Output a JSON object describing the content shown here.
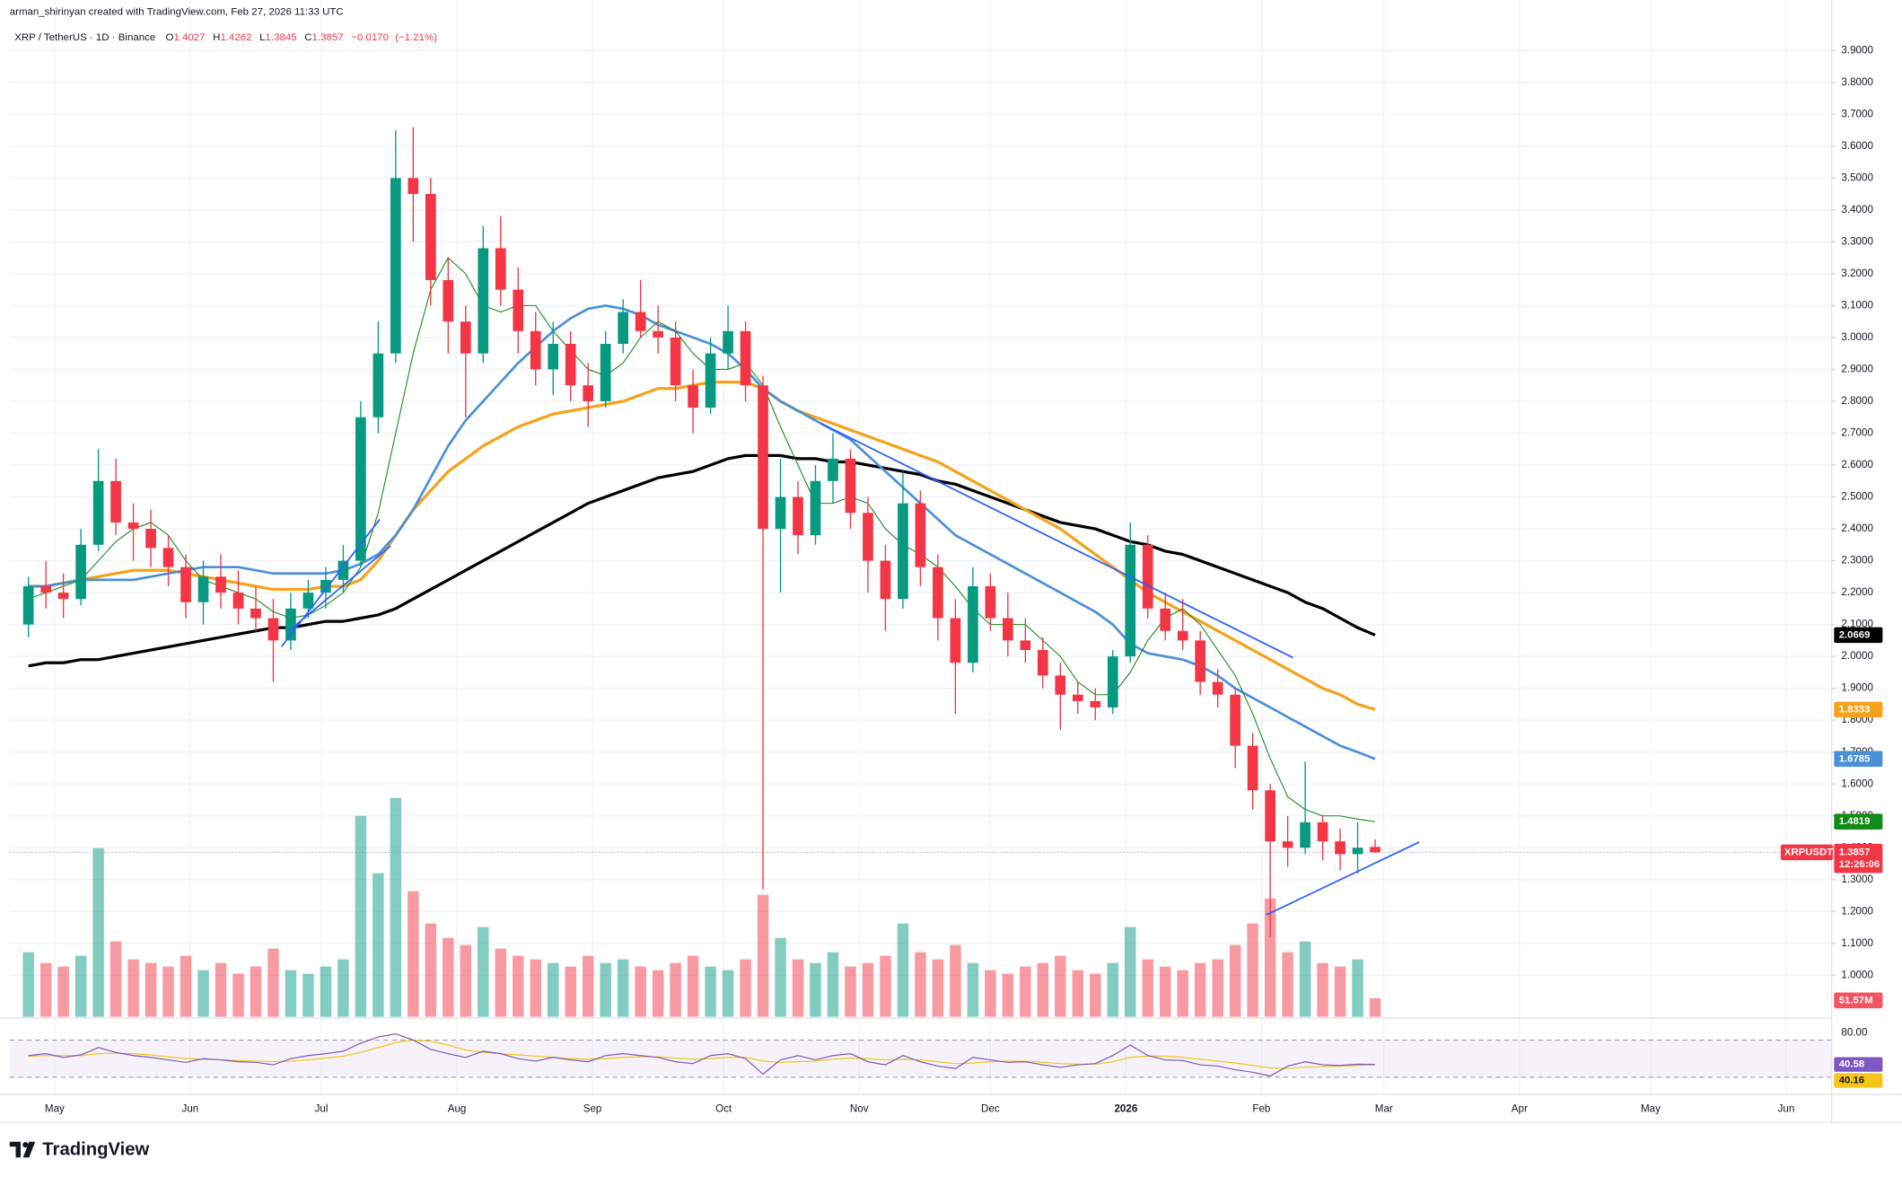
{
  "chart_data": {
    "type": "candlestick",
    "subtitle": "arman_shirinyan created with TradingView.com, Feb 27, 2026 11:33 UTC",
    "title": "XRP / TetherUS · 1D · Binance",
    "header": {
      "prefixes": [
        "O",
        "H",
        "L",
        "C"
      ],
      "change": {
        "value": -0.017,
        "label": "−0.0170"
      },
      "change_pct": {
        "value": -1.21,
        "label": "(−1.21%)"
      }
    },
    "categories": [
      null,
      null,
      null,
      null,
      null,
      null,
      null,
      null,
      null,
      null,
      null,
      null,
      null,
      null,
      null,
      null,
      null,
      null,
      null,
      null,
      null,
      null,
      null,
      null,
      null,
      null,
      null,
      null,
      null,
      null,
      null,
      null,
      null,
      null,
      null,
      null,
      null,
      null,
      null,
      null,
      null,
      null,
      null,
      null,
      null,
      null,
      null,
      null,
      null,
      null,
      null,
      null,
      null,
      null,
      null,
      null,
      null,
      null,
      null,
      null,
      null,
      null,
      null,
      null,
      null,
      null,
      null,
      null,
      null,
      null,
      null,
      null,
      null,
      null,
      null,
      null,
      null,
      null
    ],
    "open": [
      2.1,
      2.22,
      2.2,
      2.18,
      2.35,
      2.55,
      2.42,
      2.4,
      2.34,
      2.28,
      2.17,
      2.25,
      2.2,
      2.15,
      2.12,
      2.05,
      2.15,
      2.2,
      2.24,
      2.3,
      2.75,
      2.95,
      3.5,
      3.45,
      3.18,
      3.05,
      2.95,
      3.28,
      3.15,
      3.02,
      2.9,
      2.98,
      2.85,
      2.8,
      2.98,
      3.08,
      3.02,
      3.0,
      2.85,
      2.78,
      2.95,
      3.02,
      2.85,
      2.4,
      2.5,
      2.38,
      2.55,
      2.62,
      2.45,
      2.3,
      2.18,
      2.48,
      2.28,
      2.12,
      1.98,
      2.22,
      2.12,
      2.05,
      2.02,
      1.94,
      1.88,
      1.86,
      1.84,
      2.0,
      2.35,
      2.15,
      2.08,
      2.05,
      1.92,
      1.88,
      1.72,
      1.58,
      1.42,
      1.4,
      1.48,
      1.42,
      1.38,
      1.4027
    ],
    "high": [
      2.25,
      2.3,
      2.26,
      2.4,
      2.65,
      2.62,
      2.48,
      2.46,
      2.38,
      2.32,
      2.3,
      2.32,
      2.27,
      2.22,
      2.18,
      2.2,
      2.24,
      2.28,
      2.35,
      2.8,
      3.05,
      3.65,
      3.66,
      3.5,
      3.25,
      3.1,
      3.35,
      3.38,
      3.22,
      3.08,
      3.05,
      3.02,
      2.92,
      3.02,
      3.12,
      3.18,
      3.1,
      3.05,
      2.9,
      3.0,
      3.1,
      3.05,
      2.88,
      2.62,
      2.55,
      2.6,
      2.7,
      2.65,
      2.5,
      2.35,
      2.58,
      2.52,
      2.32,
      2.18,
      2.28,
      2.26,
      2.2,
      2.12,
      2.06,
      1.98,
      1.92,
      1.9,
      2.02,
      2.42,
      2.38,
      2.2,
      2.18,
      2.08,
      1.96,
      1.9,
      1.76,
      1.6,
      1.5,
      1.67,
      1.5,
      1.46,
      1.48,
      1.4262
    ],
    "low": [
      2.06,
      2.15,
      2.12,
      2.16,
      2.33,
      2.38,
      2.3,
      2.28,
      2.22,
      2.12,
      2.1,
      2.15,
      2.1,
      2.08,
      1.92,
      2.02,
      2.12,
      2.15,
      2.2,
      2.28,
      2.7,
      2.92,
      3.3,
      3.1,
      2.95,
      2.75,
      2.92,
      3.1,
      2.95,
      2.85,
      2.82,
      2.8,
      2.72,
      2.78,
      2.95,
      3.0,
      2.95,
      2.8,
      2.7,
      2.76,
      2.9,
      2.8,
      1.27,
      2.2,
      2.32,
      2.35,
      2.48,
      2.4,
      2.2,
      2.08,
      2.15,
      2.22,
      2.05,
      1.82,
      1.95,
      2.08,
      2.0,
      1.98,
      1.9,
      1.77,
      1.82,
      1.8,
      1.82,
      1.98,
      2.12,
      2.05,
      2.02,
      1.88,
      1.84,
      1.65,
      1.52,
      1.12,
      1.34,
      1.38,
      1.36,
      1.33,
      1.32,
      1.3845
    ],
    "close": [
      2.22,
      2.2,
      2.18,
      2.35,
      2.55,
      2.42,
      2.4,
      2.34,
      2.28,
      2.17,
      2.25,
      2.2,
      2.15,
      2.12,
      2.05,
      2.15,
      2.2,
      2.24,
      2.3,
      2.75,
      2.95,
      3.5,
      3.45,
      3.18,
      3.05,
      2.95,
      3.28,
      3.15,
      3.02,
      2.9,
      2.98,
      2.85,
      2.8,
      2.98,
      3.08,
      3.02,
      3.0,
      2.85,
      2.78,
      2.95,
      3.02,
      2.85,
      2.4,
      2.5,
      2.38,
      2.55,
      2.62,
      2.45,
      2.3,
      2.18,
      2.48,
      2.28,
      2.12,
      1.98,
      2.22,
      2.12,
      2.05,
      2.02,
      1.94,
      1.88,
      1.86,
      1.84,
      2.0,
      2.35,
      2.15,
      2.08,
      2.05,
      1.92,
      1.88,
      1.72,
      1.58,
      1.42,
      1.4,
      1.48,
      1.42,
      1.38,
      1.4,
      1.3857
    ],
    "up_color": "#089981",
    "down_color": "#f23645",
    "ylim": [
      0.87,
      4.02
    ],
    "yticks": [
      {
        "value": 1.0,
        "label": "1.0000"
      },
      {
        "value": 1.1,
        "label": "1.1000"
      },
      {
        "value": 1.2,
        "label": "1.2000"
      },
      {
        "value": 1.3,
        "label": "1.3000"
      },
      {
        "value": 1.4,
        "label": "1.4000"
      },
      {
        "value": 1.5,
        "label": "1.5000"
      },
      {
        "value": 1.6,
        "label": "1.6000"
      },
      {
        "value": 1.7,
        "label": "1.7000"
      },
      {
        "value": 1.8,
        "label": "1.8000"
      },
      {
        "value": 1.9,
        "label": "1.9000"
      },
      {
        "value": 2.0,
        "label": "2.0000"
      },
      {
        "value": 2.1,
        "label": "2.1000"
      },
      {
        "value": 2.2,
        "label": "2.2000"
      },
      {
        "value": 2.3,
        "label": "2.3000"
      },
      {
        "value": 2.4,
        "label": "2.4000"
      },
      {
        "value": 2.5,
        "label": "2.5000"
      },
      {
        "value": 2.6,
        "label": "2.6000"
      },
      {
        "value": 2.7,
        "label": "2.7000"
      },
      {
        "value": 2.8,
        "label": "2.8000"
      },
      {
        "value": 2.9,
        "label": "2.9000"
      },
      {
        "value": 3.0,
        "label": "3.0000"
      },
      {
        "value": 3.1,
        "label": "3.1000"
      },
      {
        "value": 3.2,
        "label": "3.2000"
      },
      {
        "value": 3.3,
        "label": "3.3000"
      },
      {
        "value": 3.4,
        "label": "3.4000"
      },
      {
        "value": 3.5,
        "label": "3.5000"
      },
      {
        "value": 3.6,
        "label": "3.6000"
      },
      {
        "value": 3.7,
        "label": "3.7000"
      },
      {
        "value": 3.8,
        "label": "3.8000"
      },
      {
        "value": 3.9,
        "label": "3.9000"
      }
    ],
    "xlim": [
      -1.07,
      103.1
    ],
    "xticks": [
      {
        "value": 1.5,
        "label": "May"
      },
      {
        "value": 9.25,
        "label": "Jun"
      },
      {
        "value": 16.75,
        "label": "Jul"
      },
      {
        "value": 24.5,
        "label": "Aug"
      },
      {
        "value": 32.25,
        "label": "Sep"
      },
      {
        "value": 39.75,
        "label": "Oct"
      },
      {
        "value": 47.5,
        "label": "Nov"
      },
      {
        "value": 55,
        "label": "Dec"
      },
      {
        "value": 62.75,
        "label": "2026"
      },
      {
        "value": 70.5,
        "label": "Feb"
      },
      {
        "value": 77.5,
        "label": "Mar"
      },
      {
        "value": 85.25,
        "label": "Apr"
      },
      {
        "value": 92.75,
        "label": "May"
      },
      {
        "value": 100.5,
        "label": "Jun"
      }
    ],
    "grid": true,
    "overlays": [
      {
        "color": "#000000",
        "width": 2.4,
        "values": [
          1.97,
          1.98,
          1.98,
          1.99,
          1.99,
          2.0,
          2.01,
          2.02,
          2.03,
          2.04,
          2.05,
          2.06,
          2.07,
          2.08,
          2.09,
          2.09,
          2.1,
          2.11,
          2.11,
          2.12,
          2.13,
          2.15,
          2.18,
          2.21,
          2.24,
          2.27,
          2.3,
          2.33,
          2.36,
          2.39,
          2.42,
          2.45,
          2.48,
          2.5,
          2.52,
          2.54,
          2.56,
          2.57,
          2.58,
          2.6,
          2.62,
          2.63,
          2.63,
          2.63,
          2.62,
          2.62,
          2.61,
          2.61,
          2.6,
          2.59,
          2.58,
          2.57,
          2.55,
          2.54,
          2.52,
          2.5,
          2.48,
          2.46,
          2.44,
          2.42,
          2.41,
          2.4,
          2.38,
          2.36,
          2.35,
          2.33,
          2.32,
          2.3,
          2.28,
          2.26,
          2.24,
          2.22,
          2.2,
          2.17,
          2.15,
          2.12,
          2.09,
          2.0669
        ]
      },
      {
        "color": "#f5a21b",
        "width": 2.4,
        "values": [
          2.22,
          2.22,
          2.23,
          2.24,
          2.25,
          2.26,
          2.27,
          2.27,
          2.27,
          2.26,
          2.25,
          2.24,
          2.23,
          2.22,
          2.21,
          2.21,
          2.21,
          2.22,
          2.22,
          2.24,
          2.3,
          2.38,
          2.46,
          2.52,
          2.58,
          2.62,
          2.66,
          2.69,
          2.72,
          2.74,
          2.76,
          2.77,
          2.78,
          2.79,
          2.8,
          2.82,
          2.84,
          2.84,
          2.85,
          2.86,
          2.86,
          2.86,
          2.84,
          2.8,
          2.77,
          2.75,
          2.73,
          2.71,
          2.69,
          2.67,
          2.65,
          2.63,
          2.61,
          2.58,
          2.55,
          2.52,
          2.49,
          2.46,
          2.43,
          2.4,
          2.36,
          2.32,
          2.28,
          2.24,
          2.2,
          2.17,
          2.14,
          2.11,
          2.08,
          2.05,
          2.02,
          1.99,
          1.96,
          1.93,
          1.9,
          1.88,
          1.85,
          1.8333
        ]
      },
      {
        "color": "#4a90d9",
        "width": 2,
        "values": [
          2.22,
          2.22,
          2.23,
          2.24,
          2.24,
          2.24,
          2.24,
          2.25,
          2.26,
          2.27,
          2.28,
          2.28,
          2.28,
          2.27,
          2.26,
          2.26,
          2.26,
          2.26,
          2.27,
          2.29,
          2.32,
          2.38,
          2.46,
          2.56,
          2.66,
          2.74,
          2.8,
          2.86,
          2.92,
          2.97,
          3.02,
          3.06,
          3.09,
          3.1,
          3.09,
          3.07,
          3.04,
          3.02,
          3.0,
          2.98,
          2.95,
          2.9,
          2.84,
          2.8,
          2.77,
          2.74,
          2.71,
          2.68,
          2.63,
          2.58,
          2.53,
          2.48,
          2.43,
          2.38,
          2.35,
          2.32,
          2.29,
          2.26,
          2.23,
          2.2,
          2.17,
          2.14,
          2.1,
          2.04,
          2.01,
          2.0,
          1.99,
          1.97,
          1.94,
          1.9,
          1.87,
          1.84,
          1.81,
          1.78,
          1.75,
          1.72,
          1.7,
          1.6785
        ]
      },
      {
        "color": "#128a17",
        "width": 0.8,
        "values": [
          2.18,
          2.2,
          2.22,
          2.24,
          2.3,
          2.36,
          2.4,
          2.42,
          2.38,
          2.3,
          2.24,
          2.22,
          2.2,
          2.18,
          2.14,
          2.12,
          2.13,
          2.16,
          2.2,
          2.28,
          2.45,
          2.7,
          2.95,
          3.15,
          3.25,
          3.2,
          3.1,
          3.08,
          3.1,
          3.1,
          3.02,
          2.96,
          2.9,
          2.88,
          2.92,
          3.0,
          3.05,
          3.02,
          2.95,
          2.9,
          2.9,
          2.92,
          2.85,
          2.72,
          2.6,
          2.48,
          2.48,
          2.5,
          2.48,
          2.4,
          2.35,
          2.32,
          2.28,
          2.22,
          2.15,
          2.1,
          2.1,
          2.1,
          2.05,
          2.0,
          1.92,
          1.88,
          1.88,
          1.95,
          2.05,
          2.12,
          2.15,
          2.1,
          2.02,
          1.94,
          1.82,
          1.68,
          1.56,
          1.52,
          1.5,
          1.5,
          1.49,
          1.4819
        ]
      }
    ],
    "volume": {
      "ylim": [
        0,
        2800
      ],
      "values": [
        180,
        150,
        140,
        170,
        470,
        210,
        160,
        150,
        140,
        170,
        130,
        150,
        120,
        140,
        190,
        130,
        120,
        140,
        160,
        560,
        400,
        610,
        350,
        260,
        220,
        200,
        250,
        190,
        170,
        160,
        150,
        140,
        170,
        150,
        160,
        140,
        130,
        150,
        170,
        140,
        130,
        160,
        340,
        220,
        160,
        150,
        180,
        140,
        150,
        170,
        260,
        180,
        160,
        200,
        150,
        130,
        120,
        140,
        150,
        170,
        130,
        120,
        150,
        250,
        160,
        140,
        130,
        150,
        160,
        200,
        260,
        330,
        180,
        210,
        150,
        140,
        160,
        51.57
      ],
      "value_labels": [
        null,
        null,
        null,
        null,
        null,
        null,
        null,
        null,
        null,
        null,
        null,
        null,
        null,
        null,
        null,
        null,
        null,
        null,
        null,
        null,
        null,
        null,
        null,
        null,
        null,
        null,
        null,
        null,
        null,
        null,
        null,
        null,
        null,
        null,
        null,
        null,
        null,
        null,
        null,
        null,
        null,
        null,
        null,
        null,
        null,
        null,
        null,
        null,
        null,
        null,
        null,
        null,
        null,
        null,
        null,
        null,
        null,
        null,
        null,
        null,
        null,
        null,
        null,
        null,
        null,
        null,
        null,
        null,
        null,
        null,
        null,
        null,
        null,
        null,
        null,
        null,
        null,
        "51.57M"
      ]
    },
    "last_price_tag": {
      "symbol": "XRPUSDT",
      "countdown": "12:26:06"
    },
    "rsi": {
      "color": "#7e57c2",
      "ylim": [
        0,
        100
      ],
      "yticks": [
        {
          "value": 80,
          "label": "80.00"
        }
      ],
      "bands": [
        80,
        20
      ],
      "values": [
        55,
        58,
        52,
        56,
        68,
        60,
        55,
        52,
        48,
        44,
        50,
        48,
        45,
        44,
        40,
        50,
        55,
        58,
        62,
        75,
        85,
        90,
        80,
        65,
        58,
        52,
        62,
        58,
        50,
        46,
        52,
        48,
        45,
        55,
        58,
        55,
        52,
        45,
        42,
        55,
        58,
        50,
        25,
        48,
        55,
        48,
        55,
        58,
        45,
        40,
        55,
        45,
        38,
        34,
        52,
        48,
        44,
        45,
        40,
        36,
        40,
        42,
        55,
        72,
        55,
        48,
        47,
        40,
        38,
        32,
        28,
        22,
        38,
        45,
        40,
        39,
        41,
        40.58
      ],
      "ma": {
        "color": "#f5c518",
        "values": [
          54,
          55,
          55,
          55,
          58,
          59,
          58,
          56,
          53,
          50,
          49,
          48,
          47,
          46,
          45,
          46,
          48,
          51,
          54,
          60,
          68,
          76,
          80,
          78,
          72,
          64,
          60,
          58,
          56,
          54,
          52,
          50,
          49,
          50,
          52,
          53,
          53,
          51,
          49,
          50,
          52,
          52,
          46,
          44,
          45,
          46,
          49,
          51,
          50,
          48,
          49,
          48,
          45,
          42,
          43,
          45,
          46,
          46,
          44,
          42,
          41,
          41,
          45,
          52,
          54,
          54,
          52,
          49,
          46,
          43,
          39,
          35,
          34,
          36,
          37,
          38,
          39,
          40.16
        ]
      }
    }
  },
  "footer": {
    "brand": "TradingView"
  }
}
